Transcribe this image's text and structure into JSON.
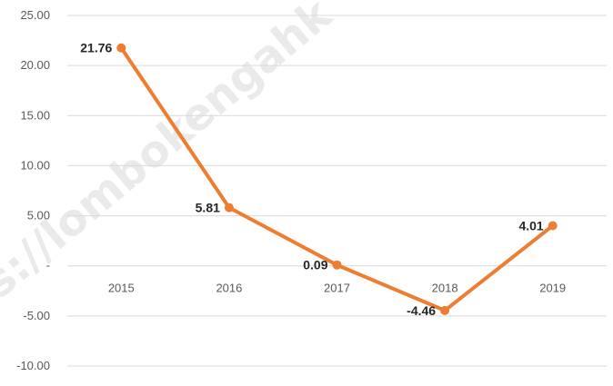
{
  "chart_data": {
    "type": "line",
    "categories": [
      "2015",
      "2016",
      "2017",
      "2018",
      "2019"
    ],
    "series": [
      {
        "values": [
          21.76,
          5.81,
          0.09,
          -4.46,
          4.01
        ]
      }
    ],
    "data_labels": [
      "21.76",
      "5.81",
      "0.09",
      "-4.46",
      "4.01"
    ],
    "y_ticks": [
      25,
      20,
      15,
      10,
      5,
      0,
      -5,
      -10
    ],
    "y_tick_labels": [
      "25.00",
      "20.00",
      "15.00",
      "10.00",
      "5.00",
      "-",
      "-5.00",
      "-10.00"
    ],
    "ylim": [
      -10,
      25
    ],
    "grid": true,
    "legend": "none",
    "series_color": "#ED7D31",
    "grid_color": "#D9D9D9",
    "title": "",
    "xlabel": "",
    "ylabel": ""
  },
  "watermark": {
    "text": "s://lombokengahk"
  }
}
